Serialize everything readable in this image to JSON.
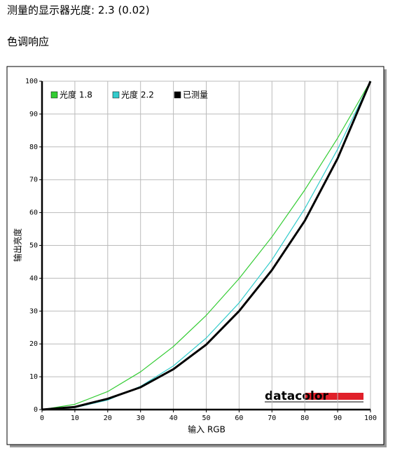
{
  "header": {
    "title": "测量的显示器光度: 2.3 (0.02)",
    "subtitle": "色调响应"
  },
  "chart_data": {
    "type": "line",
    "x_label": "输入 RGB",
    "y_label": "输出亮度",
    "watermark": "datacolor",
    "x": [
      0,
      10,
      20,
      30,
      40,
      50,
      60,
      70,
      80,
      90,
      100
    ],
    "series": [
      {
        "name": "光度 1.8",
        "color": "#33cc33",
        "values": [
          0,
          1.6,
          5.5,
          11.5,
          19.2,
          28.7,
          39.9,
          52.6,
          66.9,
          82.7,
          100
        ]
      },
      {
        "name": "光度 2.2",
        "color": "#33cccc",
        "values": [
          0,
          0.6,
          2.9,
          7.1,
          13.3,
          21.8,
          32.5,
          45.6,
          61.2,
          79.3,
          100
        ]
      },
      {
        "name": "已测量",
        "color": "#000000",
        "values": [
          0,
          0.8,
          3.3,
          6.8,
          12.3,
          19.8,
          30,
          42.5,
          57.5,
          76.5,
          100
        ]
      }
    ],
    "xlim": [
      0,
      100
    ],
    "ylim": [
      0,
      100
    ],
    "xticks": [
      0,
      10,
      20,
      30,
      40,
      50,
      60,
      70,
      80,
      90,
      100
    ],
    "yticks": [
      0,
      10,
      20,
      30,
      40,
      50,
      60,
      70,
      80,
      90,
      100
    ],
    "grid": true
  }
}
